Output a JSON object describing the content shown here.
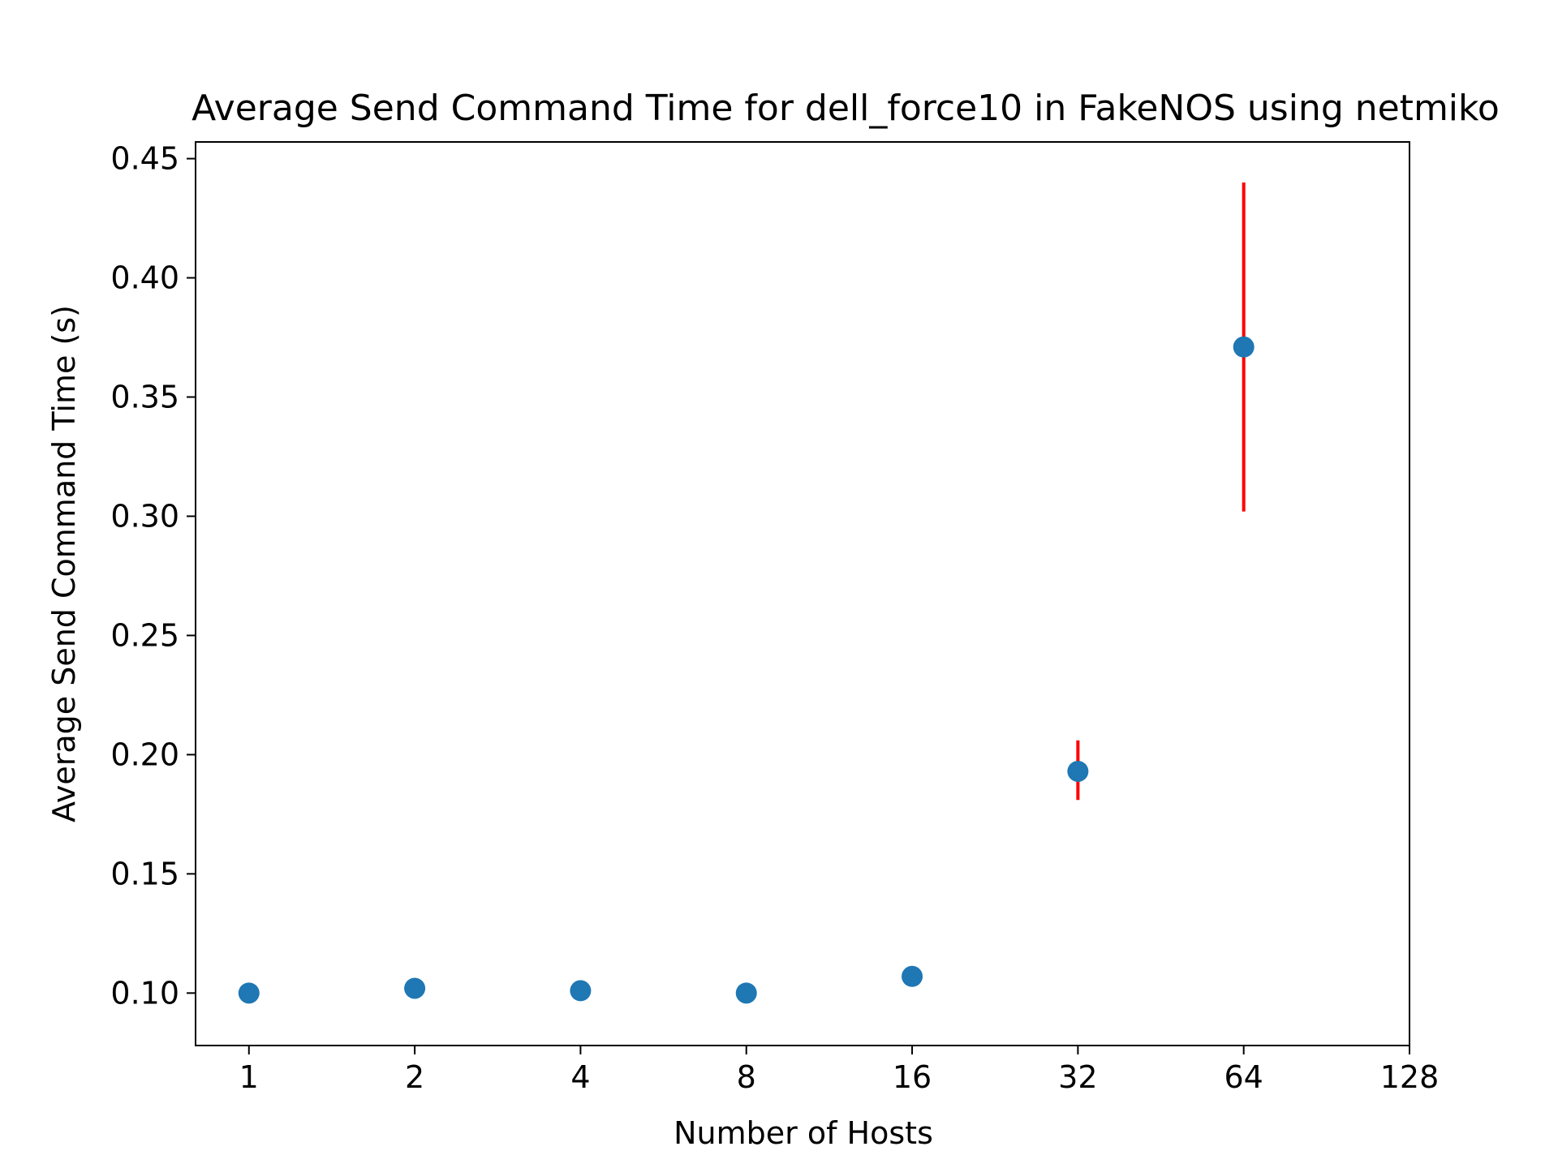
{
  "chart_data": {
    "type": "scatter",
    "title": "Average Send Command Time for dell_force10 in FakeNOS using netmiko",
    "xlabel": "Number of Hosts",
    "ylabel": "Average Send Command Time (s)",
    "x_scale": "log2",
    "xlim": [
      0.8,
      128
    ],
    "ylim": [
      0.078,
      0.457
    ],
    "x_ticks": [
      1,
      2,
      4,
      8,
      16,
      32,
      64,
      128
    ],
    "x_tick_labels": [
      "1",
      "2",
      "4",
      "8",
      "16",
      "32",
      "64",
      "128"
    ],
    "y_ticks": [
      0.1,
      0.15,
      0.2,
      0.25,
      0.3,
      0.35,
      0.4,
      0.45
    ],
    "y_tick_labels": [
      "0.10",
      "0.15",
      "0.20",
      "0.25",
      "0.30",
      "0.35",
      "0.40",
      "0.45"
    ],
    "grid": false,
    "legend": "none",
    "colors": {
      "marker": "#1f77b4",
      "error_bar": "#ff0000",
      "axes": "#000000"
    },
    "points": [
      {
        "x": 1,
        "y": 0.1,
        "err_low": 0.098,
        "err_high": 0.104
      },
      {
        "x": 2,
        "y": 0.102,
        "err_low": 0.101,
        "err_high": 0.103
      },
      {
        "x": 4,
        "y": 0.101,
        "err_low": 0.1,
        "err_high": 0.102
      },
      {
        "x": 8,
        "y": 0.1,
        "err_low": 0.099,
        "err_high": 0.101
      },
      {
        "x": 16,
        "y": 0.107,
        "err_low": 0.106,
        "err_high": 0.108
      },
      {
        "x": 32,
        "y": 0.193,
        "err_low": 0.181,
        "err_high": 0.206
      },
      {
        "x": 64,
        "y": 0.371,
        "err_low": 0.302,
        "err_high": 0.44
      }
    ]
  }
}
